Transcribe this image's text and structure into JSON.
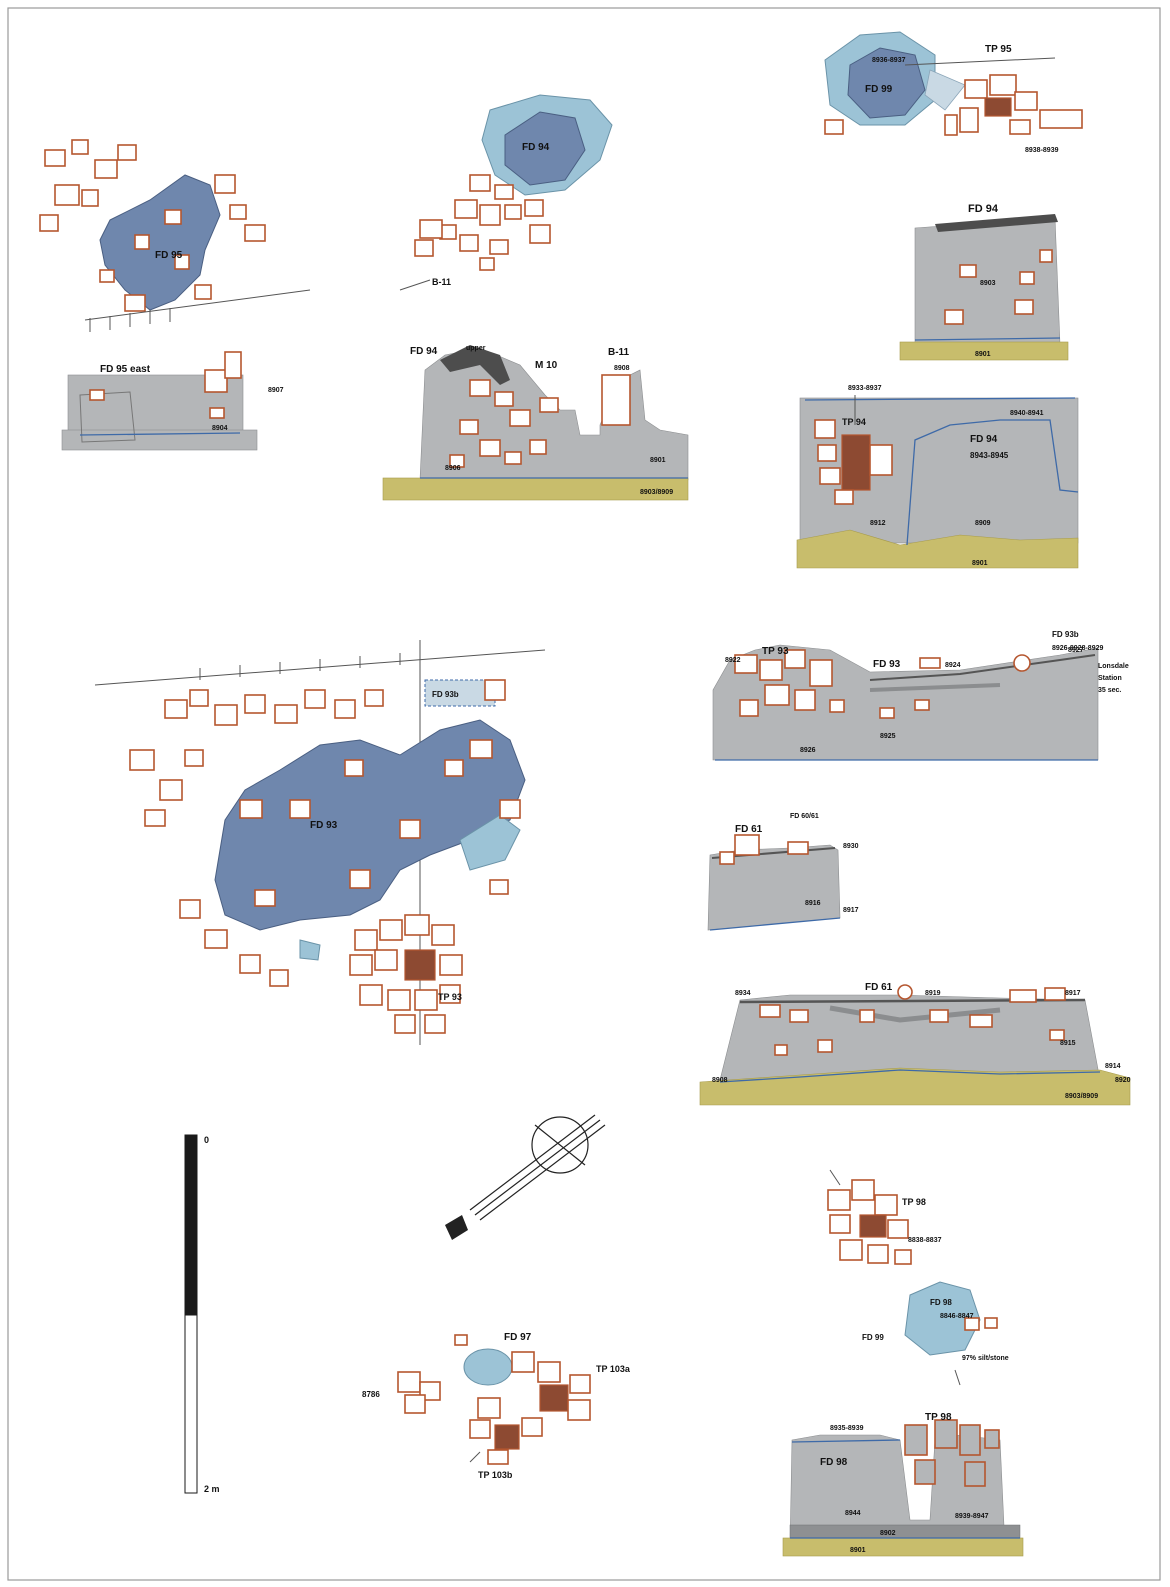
{
  "figure": {
    "panel_a": {
      "plan_label": "FD 95",
      "section_label": "FD 95 east",
      "section_notes": [
        "8907",
        "8904"
      ]
    },
    "panel_b": {
      "plan_label": "FD 94",
      "plan_sub_label": "B-11",
      "section_labels": [
        "FD 94",
        "upper",
        "M 10",
        "B-11",
        "8908",
        "8906",
        "8901",
        "8903/8909"
      ]
    },
    "panel_c": {
      "plan_labels": [
        "TP 95",
        "8936-8937",
        "FD 99",
        "8938-8939"
      ],
      "section_top_label": "FD 94",
      "section_top_notes": [
        "8903",
        "8901"
      ],
      "section_bottom_labels": [
        "8933-8937",
        "TP 94",
        "8940-8941",
        "FD 94",
        "8943-8945",
        "8912",
        "8909",
        "8901"
      ]
    },
    "panel_d": {
      "plan_labels": [
        "FD 93",
        "FD 93b",
        "TP 93"
      ]
    },
    "panel_e": {
      "labels": [
        "TP 93",
        "FD 93",
        "FD 93b",
        "8922",
        "8924",
        "8927",
        "8926",
        "8925",
        "Lonsdale",
        "Station",
        "35 sec.",
        "8926-8928-8929"
      ]
    },
    "panel_f": {
      "labels": [
        "FD 61",
        "FD 60/61",
        "8930",
        "8916",
        "8917"
      ]
    },
    "panel_g": {
      "labels": [
        "FD 61",
        "8934",
        "8919",
        "8917",
        "8915",
        "8908",
        "8914",
        "8903/8909",
        "8920"
      ]
    },
    "panel_h": {
      "plan_labels": [
        "FD 97",
        "TP 103a",
        "8786",
        "TP 103b"
      ]
    },
    "panel_i": {
      "plan_labels": [
        "TP 98",
        "8838-8837",
        "FD 98",
        "8846-8847",
        "FD 99",
        "97% silt/stone"
      ],
      "section_labels": [
        "8935-8939",
        "TP 98",
        "FD 98",
        "8944",
        "8939-8947",
        "8902",
        "8901"
      ]
    },
    "scale_bar": {
      "top_label": "0",
      "bottom_label": "2 m"
    }
  },
  "colors": {
    "stone_outline": "#b5562f",
    "pit_fill": "#6f87ad",
    "pit_fill_light": "#9cc3d6",
    "section_fill": "#b4b6b8",
    "natural_soil": "#c8bd6c",
    "boundary_line": "#3e6aa8"
  }
}
